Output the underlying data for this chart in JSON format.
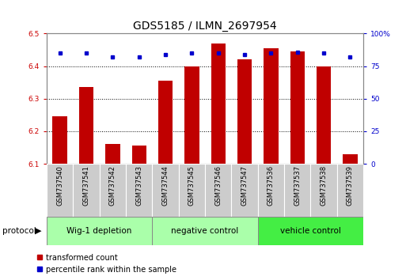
{
  "title": "GDS5185 / ILMN_2697954",
  "samples": [
    "GSM737540",
    "GSM737541",
    "GSM737542",
    "GSM737543",
    "GSM737544",
    "GSM737545",
    "GSM737546",
    "GSM737547",
    "GSM737536",
    "GSM737537",
    "GSM737538",
    "GSM737539"
  ],
  "bar_values": [
    6.245,
    6.335,
    6.16,
    6.155,
    6.355,
    6.4,
    6.47,
    6.42,
    6.455,
    6.445,
    6.4,
    6.13
  ],
  "dot_values": [
    85,
    85,
    82,
    82,
    84,
    85,
    85,
    84,
    85,
    86,
    85,
    82
  ],
  "bar_color": "#C00000",
  "dot_color": "#0000CC",
  "ylim_left": [
    6.1,
    6.5
  ],
  "ylim_right": [
    0,
    100
  ],
  "yticks_left": [
    6.1,
    6.2,
    6.3,
    6.4,
    6.5
  ],
  "yticks_right": [
    0,
    25,
    50,
    75,
    100
  ],
  "groups": [
    {
      "label": "Wig-1 depletion",
      "indices": [
        0,
        1,
        2,
        3
      ],
      "color": "#AAFFAA"
    },
    {
      "label": "negative control",
      "indices": [
        4,
        5,
        6,
        7
      ],
      "color": "#AAFFAA"
    },
    {
      "label": "vehicle control",
      "indices": [
        8,
        9,
        10,
        11
      ],
      "color": "#44EE44"
    }
  ],
  "protocol_label": "protocol",
  "bar_width": 0.55,
  "background_color": "#FFFFFF",
  "plot_bg_color": "#FFFFFF",
  "tick_label_fontsize": 6.5,
  "title_fontsize": 10,
  "label_color_left": "#CC0000",
  "label_color_right": "#0000CC",
  "xtick_box_color": "#CCCCCC",
  "xtick_border_color": "#FFFFFF",
  "group_border_color": "#888888"
}
